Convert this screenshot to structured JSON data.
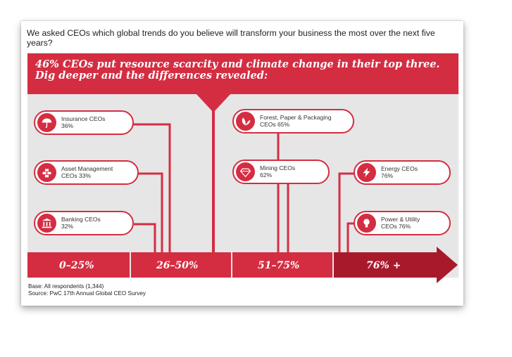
{
  "question": "We asked CEOs which global trends do you believe will transform your business the most over the next five years?",
  "banner": {
    "line1": "46% CEOs put resource scarcity and climate change in their top three.",
    "line2": "Dig deeper and the differences revealed:"
  },
  "colors": {
    "accent": "#d42d42",
    "dark_accent": "#a8192b",
    "panel": "#e6e6e6"
  },
  "sectors": [
    {
      "icon": "umbrella-icon",
      "line1": "Insurance CEOs",
      "line2": "36%"
    },
    {
      "icon": "coins-stack-icon",
      "line1": "Asset Management",
      "line2": "CEOs 33%"
    },
    {
      "icon": "bank-building-icon",
      "line1": "Banking CEOs",
      "line2": "32%"
    },
    {
      "icon": "leaves-icon",
      "line1": "Forest, Paper & Packaging",
      "line2": "CEOs 65%"
    },
    {
      "icon": "diamond-icon",
      "line1": "Mining CEOs",
      "line2": "62%"
    },
    {
      "icon": "lightning-icon",
      "line1": "Energy CEOs",
      "line2": "76%"
    },
    {
      "icon": "light-bulb-icon",
      "line1": "Power & Utility",
      "line2": "CEOs 76%"
    }
  ],
  "ranges": [
    "0–25%",
    "26–50%",
    "51–75%",
    "76% +"
  ],
  "footnote": {
    "base": "Base: All respondents (1,344)",
    "source": "Source: PwC 17th Annual Global CEO Survey"
  }
}
